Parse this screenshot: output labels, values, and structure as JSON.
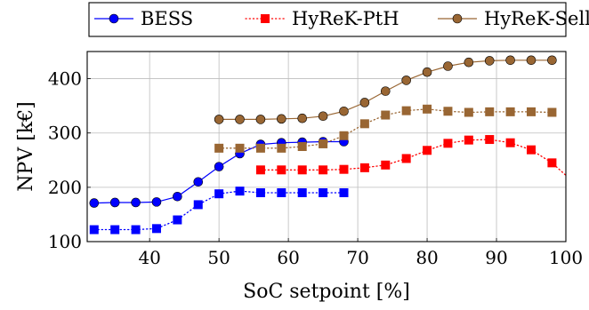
{
  "chart_data": {
    "type": "line",
    "title": "",
    "xlabel": "SoC setpoint [%]",
    "ylabel": "NPV [k€]",
    "xlim": [
      31,
      100
    ],
    "ylim": [
      100,
      450
    ],
    "x_ticks": [
      40,
      50,
      60,
      70,
      80,
      90,
      100
    ],
    "y_ticks": [
      100,
      200,
      300,
      400
    ],
    "grid": true,
    "legend_position": "top-center",
    "series": [
      {
        "name": "BESS",
        "color": "#0000ff",
        "marker": "circle",
        "line": "solid",
        "points": [
          [
            32,
            171
          ],
          [
            35,
            172
          ],
          [
            38,
            172
          ],
          [
            41,
            173
          ],
          [
            44,
            183
          ],
          [
            47,
            210
          ],
          [
            50,
            238
          ],
          [
            53,
            262
          ],
          [
            56,
            279
          ],
          [
            59,
            282
          ],
          [
            62,
            283
          ],
          [
            65,
            284
          ],
          [
            68,
            284
          ]
        ]
      },
      {
        "name": "",
        "color": "#0000ff",
        "marker": "square",
        "line": "dotted",
        "points": [
          [
            32,
            122
          ],
          [
            35,
            122
          ],
          [
            38,
            122
          ],
          [
            41,
            124
          ],
          [
            44,
            140
          ],
          [
            47,
            168
          ],
          [
            50,
            188
          ],
          [
            53,
            193
          ],
          [
            56,
            190
          ],
          [
            59,
            190
          ],
          [
            62,
            190
          ],
          [
            65,
            190
          ],
          [
            68,
            190
          ]
        ]
      },
      {
        "name": "HyReK-PtH",
        "color": "#ff0000",
        "marker": "square",
        "line": "dotted",
        "points": [
          [
            56,
            232
          ],
          [
            59,
            232
          ],
          [
            62,
            232
          ],
          [
            65,
            232
          ],
          [
            68,
            233
          ],
          [
            71,
            236
          ],
          [
            74,
            241
          ],
          [
            77,
            253
          ],
          [
            80,
            268
          ],
          [
            83,
            281
          ],
          [
            86,
            287
          ],
          [
            89,
            288
          ],
          [
            92,
            282
          ],
          [
            95,
            269
          ],
          [
            98,
            245
          ],
          [
            100,
            222
          ]
        ]
      },
      {
        "name": "",
        "color": "#996633",
        "marker": "square",
        "line": "dotted",
        "points": [
          [
            50,
            272
          ],
          [
            53,
            272
          ],
          [
            56,
            272
          ],
          [
            59,
            272
          ],
          [
            62,
            275
          ],
          [
            65,
            280
          ],
          [
            68,
            295
          ],
          [
            71,
            317
          ],
          [
            74,
            333
          ],
          [
            77,
            341
          ],
          [
            80,
            344
          ],
          [
            83,
            340
          ],
          [
            86,
            338
          ],
          [
            89,
            339
          ],
          [
            92,
            339
          ],
          [
            95,
            339
          ],
          [
            98,
            338
          ]
        ]
      },
      {
        "name": "HyReK-Sell",
        "color": "#996633",
        "marker": "circle",
        "line": "solid",
        "points": [
          [
            50,
            325
          ],
          [
            53,
            325
          ],
          [
            56,
            325
          ],
          [
            59,
            326
          ],
          [
            62,
            327
          ],
          [
            65,
            331
          ],
          [
            68,
            340
          ],
          [
            71,
            356
          ],
          [
            74,
            377
          ],
          [
            77,
            397
          ],
          [
            80,
            412
          ],
          [
            83,
            423
          ],
          [
            86,
            430
          ],
          [
            89,
            433
          ],
          [
            92,
            434
          ],
          [
            95,
            434
          ],
          [
            98,
            434
          ]
        ]
      }
    ]
  }
}
